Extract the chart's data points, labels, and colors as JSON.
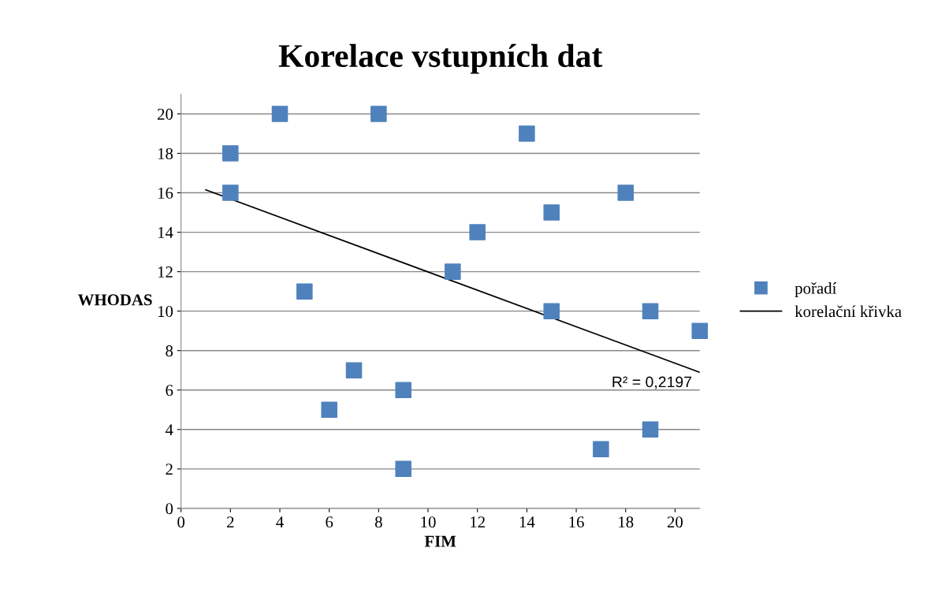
{
  "chart_data": {
    "type": "scatter",
    "title": "Korelace vstupních dat",
    "xlabel": "FIM",
    "ylabel": "WHODAS",
    "xlim": [
      0,
      21
    ],
    "xticks": [
      0,
      2,
      4,
      6,
      8,
      10,
      12,
      14,
      16,
      18,
      20
    ],
    "ylim": [
      0,
      21
    ],
    "yticks": [
      0,
      2,
      4,
      6,
      8,
      10,
      12,
      14,
      16,
      18,
      20
    ],
    "grid": "y",
    "legend": "right",
    "marker": "square",
    "series": [
      {
        "name": "pořadí",
        "color": "#4f81bd",
        "x": [
          2,
          2,
          4,
          8,
          14,
          5,
          7,
          6,
          9,
          9,
          11,
          12,
          15,
          15,
          18,
          19,
          21,
          17,
          19
        ],
        "values": [
          18,
          16,
          20,
          20,
          19,
          11,
          7,
          5,
          6,
          2,
          12,
          14,
          15,
          10,
          16,
          10,
          9,
          3,
          4
        ]
      },
      {
        "name": "korelační křivka",
        "color": "#000000",
        "type": "line",
        "marker": "none",
        "x": [
          1,
          21
        ],
        "values": [
          16.15,
          6.9
        ]
      }
    ],
    "annotations": [
      "R² = 0,2197"
    ]
  }
}
